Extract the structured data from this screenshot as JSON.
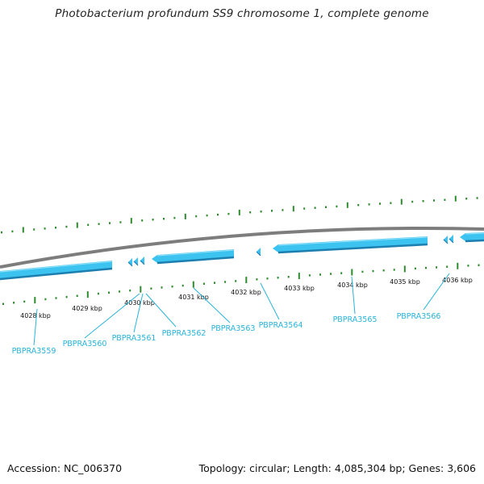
{
  "title": "Photobacterium profundum SS9 chromosome 1, complete genome",
  "footer": {
    "accession": "Accession: NC_006370",
    "summary": "Topology: circular; Length: 4,085,304 bp; Genes: 3,606"
  },
  "colors": {
    "backbone": "#8a8a8a",
    "gene": "#3cc3ef",
    "gene_edge": "#1c7fb0",
    "tick": "#2e8b2e",
    "label": "#27b4d8"
  },
  "ticks": [
    "4028 kbp",
    "4029 kbp",
    "4030 kbp",
    "4031 kbp",
    "4032 kbp",
    "4033 kbp",
    "4034 kbp",
    "4035 kbp",
    "4036 kbp"
  ],
  "genes": [
    "PBPRA3559",
    "PBPRA3560",
    "PBPRA3561",
    "PBPRA3562",
    "PBPRA3563",
    "PBPRA3564",
    "PBPRA3565",
    "PBPRA3566"
  ]
}
